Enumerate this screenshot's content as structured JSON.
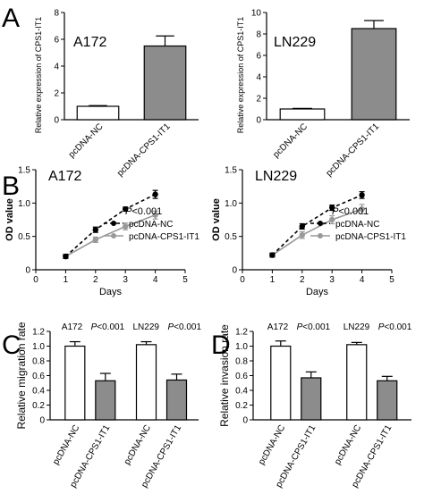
{
  "panel_labels": [
    "A",
    "B",
    "C",
    "D"
  ],
  "chart_data": [
    {
      "id": "A1",
      "type": "bar",
      "panel": "A",
      "title": "A172",
      "ylabel": "Relative expression of CPS1-IT1",
      "ylim": [
        0,
        8
      ],
      "yticks": [
        0,
        2,
        4,
        6,
        8
      ],
      "categories": [
        "pcDNA-NC",
        "pcDNA-CPS1-IT1"
      ],
      "values": [
        1.0,
        5.5
      ],
      "errors": [
        0.05,
        0.75
      ],
      "colors": [
        "#ffffff",
        "#8c8c8c"
      ]
    },
    {
      "id": "A2",
      "type": "bar",
      "panel": "A",
      "title": "LN229",
      "ylabel": "Relative expression of CPS1-IT1",
      "ylim": [
        0,
        10
      ],
      "yticks": [
        0,
        2,
        4,
        6,
        8,
        10
      ],
      "categories": [
        "pcDNA-NC",
        "pcDNA-CPS1-IT1"
      ],
      "values": [
        1.0,
        8.5
      ],
      "errors": [
        0.05,
        0.75
      ],
      "colors": [
        "#ffffff",
        "#8c8c8c"
      ]
    },
    {
      "id": "B1",
      "type": "line",
      "panel": "B",
      "title": "A172",
      "ylabel": "OD value",
      "xlabel": "Days",
      "xlim": [
        0,
        5
      ],
      "xticks": [
        0,
        1,
        2,
        3,
        4,
        5
      ],
      "ylim": [
        0,
        1.5
      ],
      "yticks": [
        0,
        0.5,
        1.0,
        1.5
      ],
      "ytick_labels": [
        "0",
        "0.5",
        "1.0",
        "1.5"
      ],
      "annotation": "P<0.001",
      "series": [
        {
          "name": "pcDNA-NC",
          "x": [
            1,
            2,
            3,
            4
          ],
          "y": [
            0.2,
            0.6,
            0.91,
            1.13
          ],
          "err": [
            0.03,
            0.04,
            0.03,
            0.06
          ],
          "color": "#000000",
          "dash": true
        },
        {
          "name": "pcDNA-CPS1-IT1",
          "x": [
            1,
            2,
            3,
            4
          ],
          "y": [
            0.2,
            0.45,
            0.65,
            0.82
          ],
          "err": [
            0.03,
            0.04,
            0.05,
            0.06
          ],
          "color": "#999999",
          "dash": false
        }
      ]
    },
    {
      "id": "B2",
      "type": "line",
      "panel": "B",
      "title": "LN229",
      "ylabel": "OD value",
      "xlabel": "Days",
      "xlim": [
        0,
        5
      ],
      "xticks": [
        0,
        1,
        2,
        3,
        4,
        5
      ],
      "ylim": [
        0,
        1.5
      ],
      "yticks": [
        0,
        0.5,
        1.0,
        1.5
      ],
      "ytick_labels": [
        "0",
        "0.5",
        "1.0",
        "1.5"
      ],
      "annotation": "P<0.001",
      "series": [
        {
          "name": "pcDNA-NC",
          "x": [
            1,
            2,
            3,
            4
          ],
          "y": [
            0.22,
            0.65,
            0.93,
            1.12
          ],
          "err": [
            0.03,
            0.04,
            0.04,
            0.05
          ],
          "color": "#000000",
          "dash": true
        },
        {
          "name": "pcDNA-CPS1-IT1",
          "x": [
            1,
            2,
            3,
            4
          ],
          "y": [
            0.22,
            0.52,
            0.75,
            0.91
          ],
          "err": [
            0.03,
            0.05,
            0.06,
            0.07
          ],
          "color": "#999999",
          "dash": false
        }
      ]
    },
    {
      "id": "C",
      "type": "bar",
      "panel": "C",
      "ylabel": "Relative migration rate",
      "ylim": [
        0,
        1.2
      ],
      "yticks": [
        0,
        0.2,
        0.4,
        0.6,
        0.8,
        1.0,
        1.2
      ],
      "ytick_labels": [
        "0",
        "0.2",
        "0.4",
        "0.6",
        "0.8",
        "1.0",
        "1.2"
      ],
      "groups": [
        {
          "name": "A172",
          "p": "P<0.001"
        },
        {
          "name": "LN229",
          "p": "P<0.001"
        }
      ],
      "categories": [
        "pcDNA-NC",
        "pcDNA-CPS1-IT1",
        "pcDNA-NC",
        "pcDNA-CPS1-IT1"
      ],
      "values": [
        1.0,
        0.53,
        1.02,
        0.54
      ],
      "errors": [
        0.06,
        0.1,
        0.04,
        0.08
      ],
      "colors": [
        "#ffffff",
        "#8c8c8c",
        "#ffffff",
        "#8c8c8c"
      ]
    },
    {
      "id": "D",
      "type": "bar",
      "panel": "D",
      "ylabel": "Relative invasion rate",
      "ylim": [
        0,
        1.2
      ],
      "yticks": [
        0,
        0.2,
        0.4,
        0.6,
        0.8,
        1.0,
        1.2
      ],
      "ytick_labels": [
        "0",
        "0.2",
        "0.4",
        "0.6",
        "0.8",
        "1.0",
        "1.2"
      ],
      "groups": [
        {
          "name": "A172",
          "p": "P<0.001"
        },
        {
          "name": "LN229",
          "p": "P<0.001"
        }
      ],
      "categories": [
        "pcDNA-NC",
        "pcDNA-CPS1-IT1",
        "pcDNA-NC",
        "pcDNA-CPS1-IT1"
      ],
      "values": [
        1.0,
        0.57,
        1.02,
        0.53
      ],
      "errors": [
        0.07,
        0.08,
        0.03,
        0.06
      ],
      "colors": [
        "#ffffff",
        "#8c8c8c",
        "#ffffff",
        "#8c8c8c"
      ]
    }
  ]
}
